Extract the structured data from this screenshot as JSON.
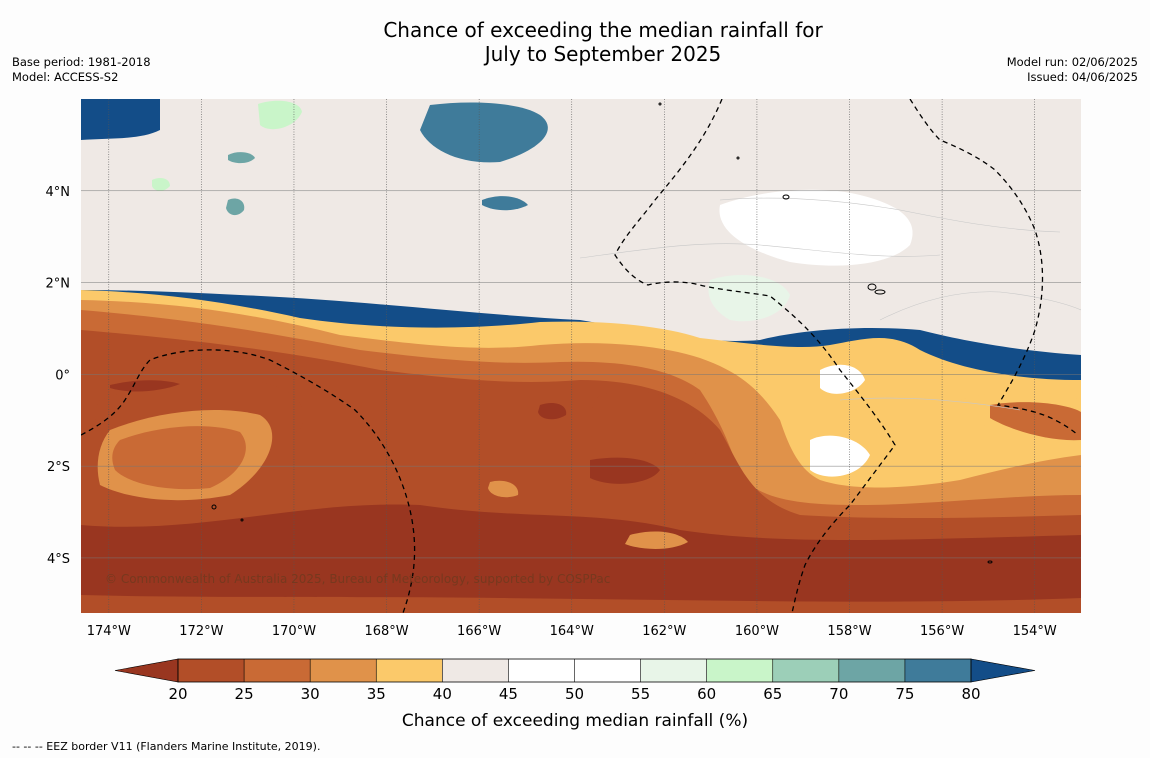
{
  "title": {
    "line1": "Chance of exceeding the median rainfall for",
    "line2": "July to September 2025"
  },
  "meta_left": {
    "base_period": "Base period: 1981-2018",
    "model": "Model: ACCESS-S2"
  },
  "meta_right": {
    "model_run": "Model run: 02/06/2025",
    "issued": "Issued: 04/06/2025"
  },
  "map": {
    "lon_labels": [
      "174°W",
      "172°W",
      "170°W",
      "168°W",
      "166°W",
      "164°W",
      "162°W",
      "160°W",
      "158°W",
      "156°W",
      "154°W"
    ],
    "lat_labels": [
      "4°N",
      "2°N",
      "0°",
      "2°S",
      "4°S"
    ],
    "lon_range": [
      -174.6,
      -153.0
    ],
    "lat_range": [
      -5.2,
      6.0
    ],
    "copyright": "© Commonwealth of Australia 2025, Bureau of Meteorology, supported by COSPPac",
    "band_colors": [
      "#993620",
      "#b24e28",
      "#c96a35",
      "#e0924a",
      "#fbc96a",
      "#efe9e5",
      "#ffffff",
      "#e8f5e8",
      "#c9f5c9",
      "#9ccfb8",
      "#6da5a5",
      "#3f7b9a",
      "#134d88"
    ]
  },
  "colorbar": {
    "ticks": [
      "20",
      "25",
      "30",
      "35",
      "40",
      "45",
      "50",
      "55",
      "60",
      "65",
      "70",
      "75",
      "80"
    ],
    "title": "Chance of exceeding median rainfall (%)",
    "colors": [
      "#b24e28",
      "#c96a35",
      "#e0924a",
      "#fbc96a",
      "#efe9e5",
      "#ffffff",
      "#ffffff",
      "#e8f5e8",
      "#c9f5c9",
      "#9ccfb8",
      "#6da5a5",
      "#3f7b9a"
    ],
    "under_color": "#993620",
    "over_color": "#134d88"
  },
  "footnote": "--  --  -- EEZ border V11 (Flanders Marine Institute, 2019)."
}
